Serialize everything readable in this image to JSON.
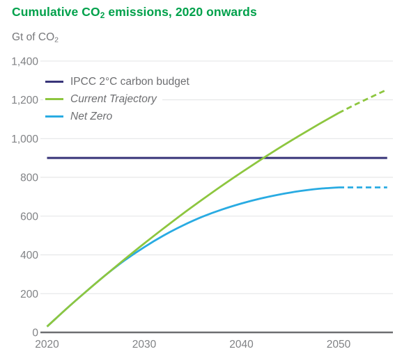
{
  "header": {
    "title_pre": "Cumulative CO",
    "title_sub": "2",
    "title_post": " emissions, 2020 onwards",
    "unit_pre": "Gt of CO",
    "unit_sub": "2"
  },
  "colors": {
    "title_green": "#00A14B",
    "budget_navy": "#383479",
    "trajectory_green": "#8DC63F",
    "netzero_blue": "#29ABE2",
    "grid": "#E6E7E8",
    "axis_line": "#6D6E71",
    "tick_text": "#808285",
    "legend_text": "#6D6E71"
  },
  "chart_data": {
    "type": "line",
    "title": "Cumulative CO2 emissions, 2020 onwards",
    "ylabel": "Gt of CO2",
    "xlabel": "",
    "x_domain": [
      2020,
      2055
    ],
    "y_domain": [
      0,
      1400
    ],
    "grid": "horizontal-only",
    "legend_position": "top-left-inside",
    "x_ticks": [
      2020,
      2030,
      2040,
      2050
    ],
    "x_tick_labels": [
      "2020",
      "2030",
      "2040",
      "2050"
    ],
    "y_ticks": [
      0,
      200,
      400,
      600,
      800,
      1000,
      1200,
      1400
    ],
    "y_tick_labels": [
      "0",
      "200",
      "400",
      "600",
      "800",
      "1,000",
      "1,200",
      "1,400"
    ],
    "dashed_segments_note": "Current Trajectory and Net Zero become dashed projections after 2050",
    "series": [
      {
        "name": "IPCC 2°C carbon budget",
        "color": "#383479",
        "italic": false,
        "style": "solid",
        "solid_points": [
          [
            2020,
            900
          ],
          [
            2055,
            900
          ]
        ],
        "dashed_points": []
      },
      {
        "name": "Current Trajectory",
        "color": "#8DC63F",
        "italic": true,
        "style": "solid-then-dashed",
        "solid_points": [
          [
            2020,
            30
          ],
          [
            2022,
            122
          ],
          [
            2024,
            210
          ],
          [
            2026,
            295
          ],
          [
            2028,
            378
          ],
          [
            2030,
            459
          ],
          [
            2032,
            537
          ],
          [
            2034,
            613
          ],
          [
            2036,
            686
          ],
          [
            2038,
            757
          ],
          [
            2040,
            825
          ],
          [
            2042,
            891
          ],
          [
            2044,
            955
          ],
          [
            2046,
            1016
          ],
          [
            2048,
            1075
          ],
          [
            2050,
            1132
          ]
        ],
        "dashed_points": [
          [
            2050,
            1132
          ],
          [
            2052,
            1182
          ],
          [
            2055,
            1253
          ]
        ]
      },
      {
        "name": "Net Zero",
        "color": "#29ABE2",
        "italic": true,
        "style": "solid-then-dashed",
        "solid_points": [
          [
            2020,
            30
          ],
          [
            2022,
            122
          ],
          [
            2024,
            210
          ],
          [
            2026,
            295
          ],
          [
            2028,
            372
          ],
          [
            2030,
            440
          ],
          [
            2032,
            500
          ],
          [
            2034,
            552
          ],
          [
            2036,
            597
          ],
          [
            2038,
            634
          ],
          [
            2040,
            665
          ],
          [
            2042,
            691
          ],
          [
            2044,
            712
          ],
          [
            2046,
            729
          ],
          [
            2048,
            741
          ],
          [
            2050,
            748
          ]
        ],
        "dashed_points": [
          [
            2050,
            748
          ],
          [
            2055,
            748
          ]
        ]
      }
    ]
  }
}
